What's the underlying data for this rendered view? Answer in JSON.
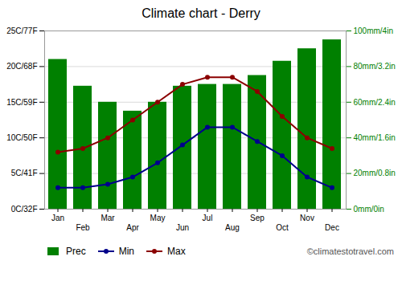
{
  "chart_data": {
    "type": "bar",
    "title": "Climate chart - Derry",
    "categories": [
      "Jan",
      "Feb",
      "Mar",
      "Apr",
      "May",
      "Jun",
      "Jul",
      "Aug",
      "Sep",
      "Oct",
      "Nov",
      "Dec"
    ],
    "series": [
      {
        "name": "Prec",
        "type": "bar",
        "axis": "y2",
        "color": "#008000",
        "values": [
          84,
          69,
          60,
          55,
          60,
          69,
          70,
          70,
          75,
          83,
          90,
          95
        ]
      },
      {
        "name": "Min",
        "type": "line",
        "color": "#00008B",
        "marker": "circle",
        "values": [
          3,
          3,
          3.5,
          4.5,
          6.5,
          9,
          11.5,
          11.5,
          9.5,
          7.5,
          4.5,
          3
        ]
      },
      {
        "name": "Max",
        "type": "line",
        "color": "#8B0000",
        "marker": "circle",
        "values": [
          8,
          8.5,
          10,
          12.5,
          15,
          17.5,
          18.5,
          18.5,
          16.5,
          13,
          10,
          8.5
        ]
      }
    ],
    "ylim": [
      0,
      25
    ],
    "yticks": [
      {
        "value": 0,
        "label": "0C/32F"
      },
      {
        "value": 5,
        "label": "5C/41F"
      },
      {
        "value": 10,
        "label": "10C/50F"
      },
      {
        "value": 15,
        "label": "15C/59F"
      },
      {
        "value": 20,
        "label": "20C/68F"
      },
      {
        "value": 25,
        "label": "25C/77F"
      }
    ],
    "y2lim": [
      0,
      100
    ],
    "y2ticks": [
      {
        "value": 0,
        "label": "0mm/0in"
      },
      {
        "value": 20,
        "label": "20mm/0.8in"
      },
      {
        "value": 40,
        "label": "40mm/1.6in"
      },
      {
        "value": 60,
        "label": "60mm/2.4in"
      },
      {
        "value": 80,
        "label": "80mm/3.2in"
      },
      {
        "value": 100,
        "label": "100mm/4in"
      }
    ],
    "grid": true,
    "legend": "lower left",
    "annotations": [
      "©climatestotravel.com"
    ]
  }
}
